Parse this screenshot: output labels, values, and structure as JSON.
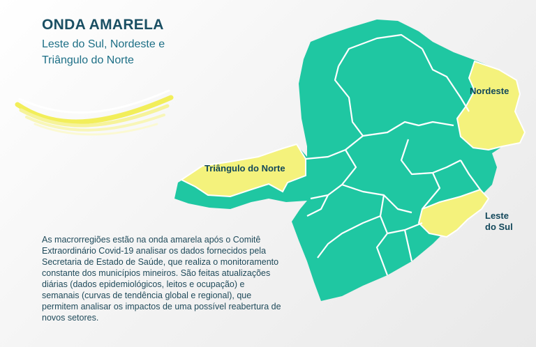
{
  "header": {
    "title": "ONDA AMARELA",
    "subtitle": "Leste do Sul, Nordeste e Triângulo do Norte"
  },
  "map": {
    "region_labels": {
      "triangulo_norte": "Triângulo do Norte",
      "nordeste": "Nordeste",
      "leste_sul_line1": "Leste",
      "leste_sul_line2": "do Sul"
    },
    "colors": {
      "green_wave": "#1fc7a2",
      "yellow_wave": "#f4f27c",
      "border": "#ffffff"
    },
    "yellow_regions": [
      "Leste do Sul",
      "Nordeste",
      "Triângulo do Norte"
    ]
  },
  "body": {
    "paragraph": "As macrorregiões estão na onda amarela após o Comitê Extraordinário Covid-19 analisar os dados fornecidos pela Secretaria de Estado de Saúde, que realiza o monitoramento constante dos municípios mineiros. São feitas atualizações diárias (dados epidemiológicos, leitos e ocupação) e semanais (curvas de tendência global e regional), que permitem analisar os impactos de uma possível reabertura de novos setores."
  }
}
